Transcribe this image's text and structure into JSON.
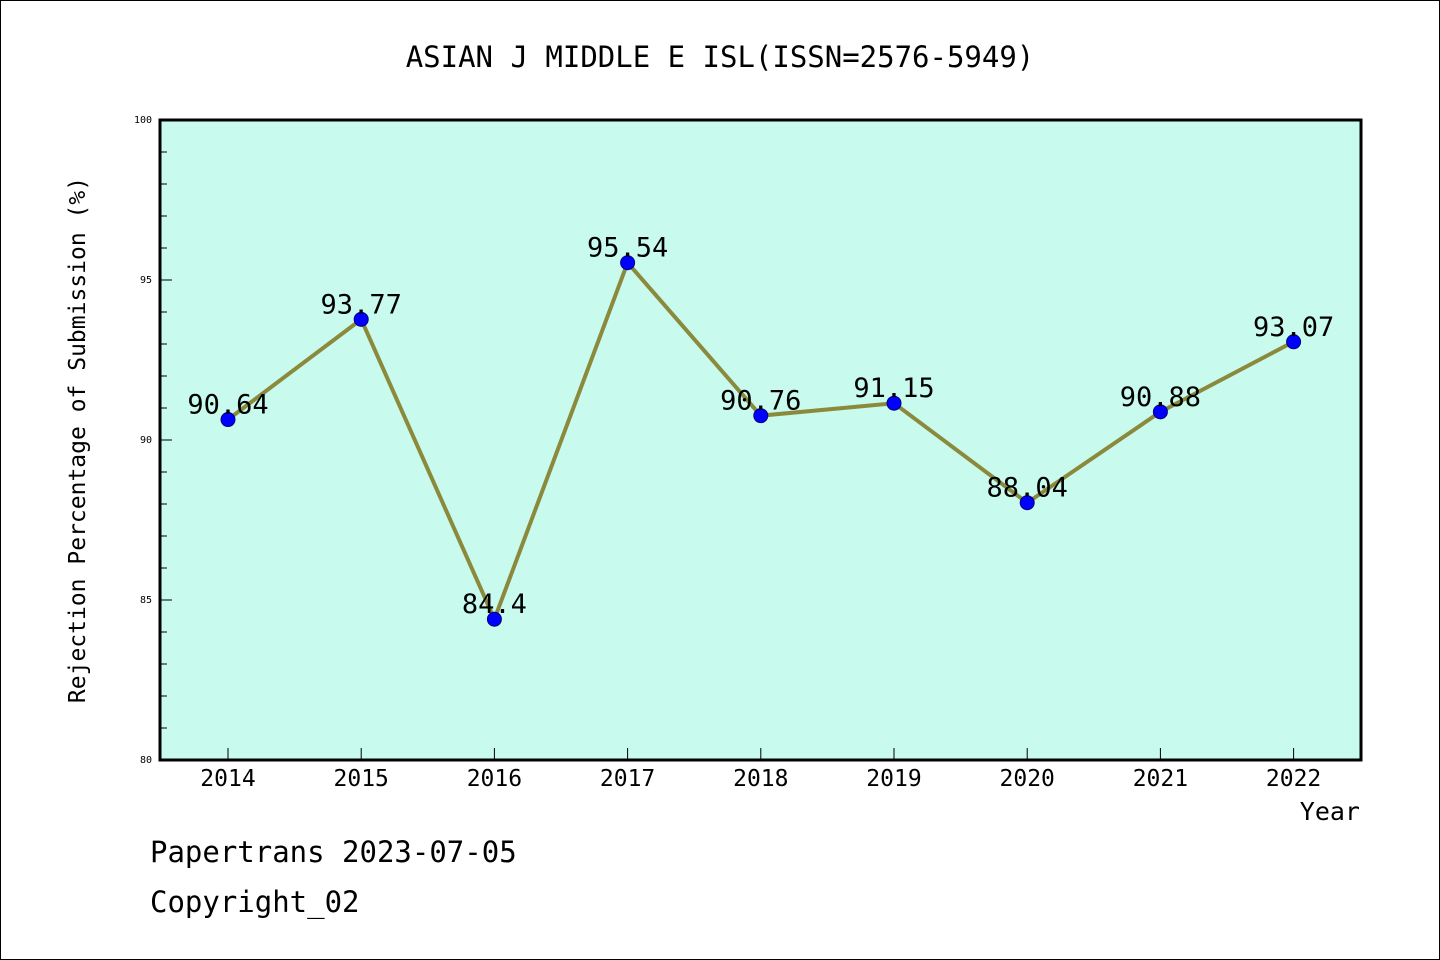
{
  "chart_data": {
    "type": "line",
    "title": "ASIAN J MIDDLE E ISL(ISSN=2576-5949)",
    "xlabel": "Year",
    "ylabel": "Rejection Percentage of Submission (%)",
    "categories": [
      "2014",
      "2015",
      "2016",
      "2017",
      "2018",
      "2019",
      "2020",
      "2021",
      "2022"
    ],
    "series": [
      {
        "values": [
          90.64,
          93.77,
          84.4,
          95.54,
          90.76,
          91.15,
          88.04,
          90.88,
          93.07
        ],
        "data_labels": [
          "90.64",
          "93.77",
          "84.4",
          "95.54",
          "90.76",
          "91.15",
          "88.04",
          "90.88",
          "93.07"
        ]
      }
    ],
    "ylim": [
      80,
      100
    ],
    "yticks": [
      "80",
      "85",
      "90",
      "95",
      "100"
    ],
    "grid": false,
    "colors": {
      "plot_background": "#c8fbee",
      "line": "#8b8a3c",
      "marker": "#0000ff"
    }
  },
  "footer": {
    "line1": "Papertrans 2023-07-05",
    "line2": "Copyright_02"
  }
}
